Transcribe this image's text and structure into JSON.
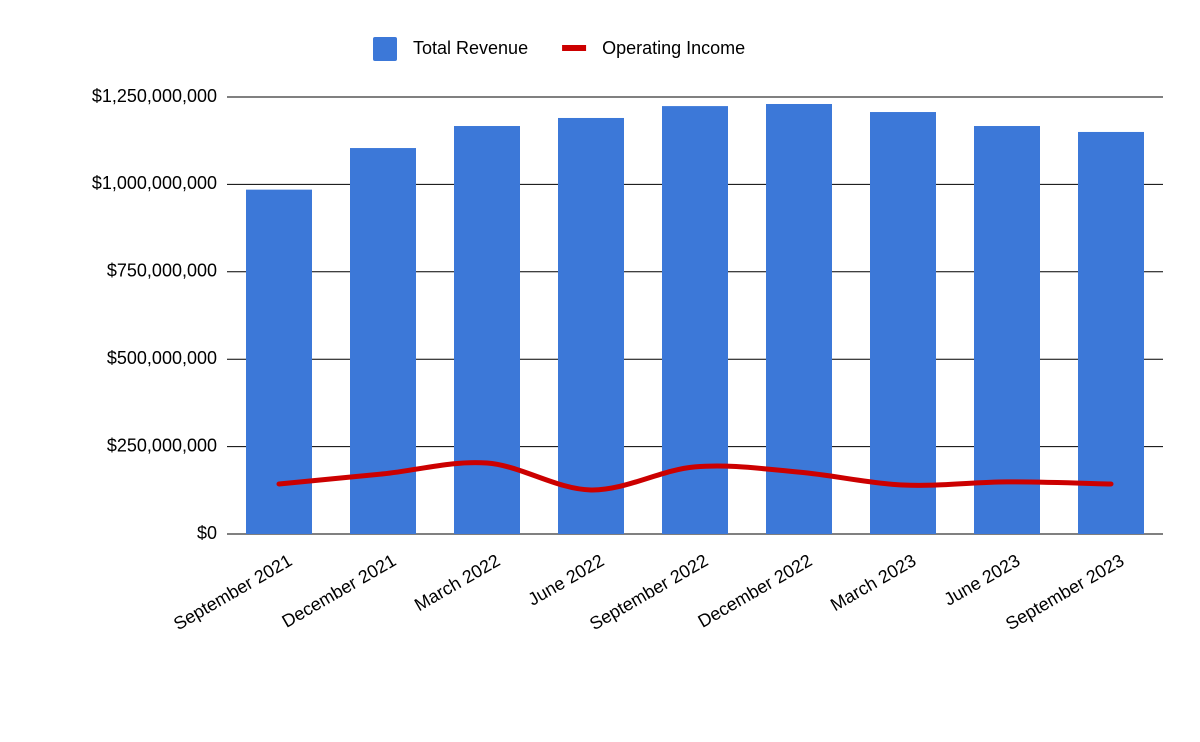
{
  "chart_data": {
    "type": "bar-line",
    "categories": [
      "September 2021",
      "December 2021",
      "March 2022",
      "June 2022",
      "September 2022",
      "December 2022",
      "March 2023",
      "June 2023",
      "September 2023"
    ],
    "series": [
      {
        "name": "Total Revenue",
        "type": "bar",
        "color": "#3c78d8",
        "values": [
          985000000,
          1104000000,
          1167000000,
          1190000000,
          1224000000,
          1230000000,
          1207000000,
          1167000000,
          1150000000
        ]
      },
      {
        "name": "Operating Income",
        "type": "line",
        "smooth": true,
        "color": "#cc0000",
        "values": [
          143000000,
          172000000,
          203000000,
          126000000,
          192000000,
          177000000,
          140000000,
          149000000,
          143000000
        ]
      }
    ],
    "ylim": [
      0,
      1250000000
    ],
    "yticks": [
      {
        "value": 0,
        "label": "$0"
      },
      {
        "value": 250000000,
        "label": "$250,000,000"
      },
      {
        "value": 500000000,
        "label": "$500,000,000"
      },
      {
        "value": 750000000,
        "label": "$750,000,000"
      },
      {
        "value": 1000000000,
        "label": "$1,000,000,000"
      },
      {
        "value": 1250000000,
        "label": "$1,250,000,000"
      }
    ],
    "grid": true,
    "legend": "top"
  }
}
